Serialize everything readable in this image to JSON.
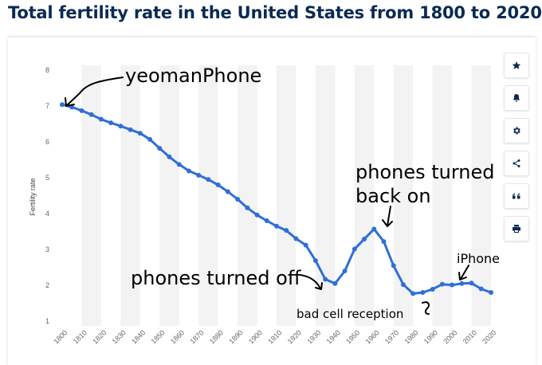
{
  "header": {
    "title": "Total fertility rate in the United States from 1800 to 2020*"
  },
  "toolbar": {
    "buttons": [
      {
        "name": "favorite",
        "icon": "star-icon"
      },
      {
        "name": "notification",
        "icon": "bell-icon"
      },
      {
        "name": "settings",
        "icon": "gear-icon"
      },
      {
        "name": "share",
        "icon": "share-icon"
      },
      {
        "name": "cite",
        "icon": "quote-icon"
      },
      {
        "name": "print",
        "icon": "print-icon"
      }
    ]
  },
  "colors": {
    "line": "#2f6fd6",
    "title": "#0a2a52",
    "band": "#f3f3f3"
  },
  "chart_data": {
    "type": "line",
    "ylabel": "Fertility rate",
    "ylim": [
      1,
      8
    ],
    "yticks": [
      1,
      2,
      3,
      4,
      5,
      6,
      7,
      8
    ],
    "xlim": [
      1800,
      2020
    ],
    "xticks": [
      1800,
      1810,
      1820,
      1830,
      1840,
      1850,
      1860,
      1870,
      1880,
      1890,
      1900,
      1910,
      1920,
      1930,
      1940,
      1950,
      1960,
      1970,
      1980,
      1990,
      2000,
      2010,
      2020
    ],
    "grid": "alternating vertical bands",
    "series": [
      {
        "x": [
          1800,
          1805,
          1810,
          1815,
          1820,
          1825,
          1830,
          1835,
          1840,
          1845,
          1850,
          1855,
          1860,
          1865,
          1870,
          1875,
          1880,
          1885,
          1890,
          1895,
          1900,
          1905,
          1910,
          1915,
          1920,
          1925,
          1930,
          1935,
          1940,
          1945,
          1950,
          1955,
          1960,
          1965,
          1970,
          1975,
          1980,
          1985,
          1990,
          1995,
          2000,
          2005,
          2010,
          2015,
          2020
        ],
        "y": [
          7.04,
          6.97,
          6.87,
          6.76,
          6.63,
          6.53,
          6.44,
          6.34,
          6.24,
          6.07,
          5.82,
          5.58,
          5.37,
          5.19,
          5.07,
          4.95,
          4.8,
          4.61,
          4.4,
          4.16,
          3.96,
          3.8,
          3.65,
          3.53,
          3.3,
          3.12,
          2.69,
          2.17,
          2.05,
          2.4,
          3.01,
          3.29,
          3.57,
          3.22,
          2.55,
          2.02,
          1.77,
          1.8,
          1.89,
          2.03,
          2.01,
          2.05,
          2.06,
          1.9,
          1.8
        ]
      }
    ],
    "annotations": [
      {
        "text": "yeomanPhone"
      },
      {
        "text": "phones turned off"
      },
      {
        "text": "phones turned"
      },
      {
        "text": "back on"
      },
      {
        "text": "bad cell reception"
      },
      {
        "text": "iPhone"
      }
    ]
  }
}
